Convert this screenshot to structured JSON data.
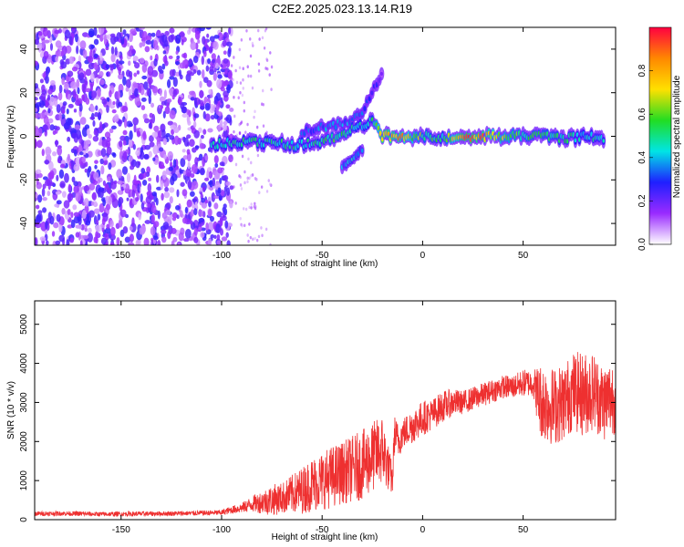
{
  "title": "C2E2.2025.023.13.14.R19",
  "colorbar": {
    "label": "Normalized spectral amplitude",
    "ticks": [
      "0.0",
      "0.2",
      "0.4",
      "0.6",
      "0.8"
    ],
    "tick_values": [
      0.0,
      0.2,
      0.4,
      0.6,
      0.8
    ],
    "range": [
      0,
      1
    ],
    "colors": [
      "#ffffff",
      "#9a2bff",
      "#1f1fff",
      "#00e5e5",
      "#22dd22",
      "#ffe000",
      "#ff8800",
      "#ff0040"
    ]
  },
  "chart_data": [
    {
      "type": "heatmap",
      "xlabel": "Height of straight line (km)",
      "ylabel": "Frequency (Hz)",
      "xlim": [
        -193,
        96
      ],
      "ylim": [
        -50,
        50
      ],
      "x_ticks": [
        -150,
        -100,
        -50,
        0,
        50
      ],
      "x_tick_labels": [
        "-150",
        "-100",
        "-50",
        "0",
        "50"
      ],
      "y_ticks": [
        -40,
        -20,
        0,
        20,
        40
      ],
      "y_tick_labels": [
        "-40",
        "-20",
        "0",
        "20",
        "40"
      ],
      "signal_ridge": [
        {
          "x": -105,
          "y": -4,
          "amp": 0.5
        },
        {
          "x": -95,
          "y": -3,
          "amp": 0.5
        },
        {
          "x": -85,
          "y": -2,
          "amp": 0.55
        },
        {
          "x": -75,
          "y": -3,
          "amp": 0.5
        },
        {
          "x": -65,
          "y": -4,
          "amp": 0.55
        },
        {
          "x": -55,
          "y": -3,
          "amp": 0.5
        },
        {
          "x": -45,
          "y": -1,
          "amp": 0.6
        },
        {
          "x": -35,
          "y": 3,
          "amp": 0.55
        },
        {
          "x": -30,
          "y": 5,
          "amp": 0.5
        },
        {
          "x": -25,
          "y": 7,
          "amp": 0.55
        },
        {
          "x": -20,
          "y": 0,
          "amp": 0.9
        },
        {
          "x": -10,
          "y": 0,
          "amp": 0.85
        },
        {
          "x": 0,
          "y": 0,
          "amp": 0.6
        },
        {
          "x": 10,
          "y": -1,
          "amp": 0.55
        },
        {
          "x": 20,
          "y": 0,
          "amp": 0.95
        },
        {
          "x": 30,
          "y": 0,
          "amp": 0.9
        },
        {
          "x": 40,
          "y": 0,
          "amp": 0.7
        },
        {
          "x": 50,
          "y": 0,
          "amp": 0.6
        },
        {
          "x": 60,
          "y": 0,
          "amp": 0.6
        },
        {
          "x": 70,
          "y": -1,
          "amp": 0.55
        },
        {
          "x": 80,
          "y": 0,
          "amp": 0.5
        },
        {
          "x": 90,
          "y": -1,
          "amp": 0.5
        }
      ],
      "secondary_ridge": [
        {
          "x": -60,
          "y": 2,
          "amp": 0.35
        },
        {
          "x": -40,
          "y": 6,
          "amp": 0.4
        },
        {
          "x": -30,
          "y": 10,
          "amp": 0.35
        },
        {
          "x": -25,
          "y": 20,
          "amp": 0.3
        },
        {
          "x": -20,
          "y": 30,
          "amp": 0.2
        }
      ],
      "lower_branch": [
        {
          "x": -40,
          "y": -14,
          "amp": 0.4
        },
        {
          "x": -35,
          "y": -10,
          "amp": 0.45
        },
        {
          "x": -30,
          "y": -6,
          "amp": 0.4
        }
      ],
      "noise_region_x": [
        -193,
        -95
      ],
      "noise_amp": 0.2
    },
    {
      "type": "line",
      "xlabel": "Height of straight line (km)",
      "ylabel": "SNR (10 * v/v)",
      "xlim": [
        -193,
        96
      ],
      "ylim": [
        0,
        5600
      ],
      "x_ticks": [
        -150,
        -100,
        -50,
        0,
        50
      ],
      "x_tick_labels": [
        "-150",
        "-100",
        "-50",
        "0",
        "50"
      ],
      "y_ticks": [
        0,
        1000,
        2000,
        3000,
        4000,
        5000
      ],
      "y_tick_labels": [
        "0",
        "1000",
        "2000",
        "3000",
        "4000",
        "5000"
      ],
      "series_color": "#ee3030",
      "x": [
        -193,
        -180,
        -160,
        -140,
        -120,
        -100,
        -95,
        -90,
        -85,
        -80,
        -75,
        -70,
        -65,
        -60,
        -55,
        -50,
        -45,
        -40,
        -35,
        -30,
        -25,
        -20,
        -15,
        -14,
        -12,
        -10,
        -5,
        0,
        5,
        10,
        15,
        20,
        25,
        30,
        35,
        40,
        45,
        50,
        55,
        58,
        60,
        65,
        70,
        75,
        80,
        85,
        90,
        96
      ],
      "values": [
        150,
        160,
        140,
        150,
        160,
        180,
        250,
        300,
        400,
        450,
        500,
        550,
        650,
        750,
        900,
        1000,
        1100,
        1200,
        1300,
        1400,
        1600,
        1800,
        1000,
        2200,
        2000,
        2200,
        2400,
        2600,
        2700,
        2900,
        3000,
        3000,
        3100,
        3200,
        3300,
        3400,
        3400,
        3500,
        3500,
        3100,
        3000,
        2900,
        3000,
        3300,
        3200,
        3300,
        3000,
        3200
      ],
      "noise_spread": [
        60,
        60,
        60,
        60,
        60,
        70,
        100,
        130,
        200,
        300,
        400,
        400,
        500,
        600,
        700,
        750,
        800,
        800,
        850,
        900,
        900,
        900,
        400,
        500,
        450,
        400,
        450,
        450,
        400,
        400,
        350,
        300,
        300,
        300,
        300,
        300,
        300,
        350,
        350,
        900,
        1000,
        1000,
        1000,
        1000,
        1100,
        1000,
        1000,
        1000
      ]
    }
  ]
}
